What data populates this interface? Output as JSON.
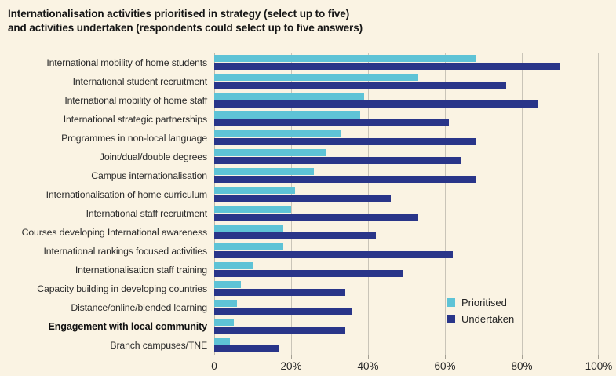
{
  "title": {
    "line1": "Internationalisation activities prioritised in strategy (select up to five)",
    "line2": "and activities undertaken (respondents could select up to five answers)"
  },
  "chart_data": {
    "type": "bar",
    "orientation": "horizontal",
    "title": "Internationalisation activities prioritised in strategy (select up to five) and activities undertaken (respondents could select up to five answers)",
    "categories": [
      "International mobility of home students",
      "International student recruitment",
      "International mobility of home staff",
      "International strategic partnerships",
      "Programmes in non-local language",
      "Joint/dual/double degrees",
      "Campus internationalisation",
      "Internationalisation of home curriculum",
      "International staff recruitment",
      "Courses developing International awareness",
      "International rankings focused activities",
      "Internationalisation staff training",
      "Capacity building in developing countries",
      "Distance/online/blended learning",
      "Engagement with local community",
      "Branch campuses/TNE"
    ],
    "series": [
      {
        "name": "Prioritised",
        "color": "#5ec3d6",
        "values": [
          68,
          53,
          39,
          38,
          33,
          29,
          26,
          21,
          20,
          18,
          18,
          10,
          7,
          6,
          5,
          4
        ]
      },
      {
        "name": "Undertaken",
        "color": "#293589",
        "values": [
          90,
          76,
          84,
          61,
          68,
          64,
          68,
          46,
          53,
          42,
          62,
          49,
          34,
          36,
          34,
          17
        ]
      }
    ],
    "xlabel": "",
    "ylabel": "",
    "xlim": [
      0,
      100
    ],
    "x_ticks": [
      "0",
      "20%",
      "40%",
      "60%",
      "80%",
      "100%"
    ],
    "grid": "vertical-only",
    "legend_position": "inside-lower-right",
    "bold_category": "Engagement with local community"
  },
  "colors": {
    "background": "#faf3e3",
    "gridline": "#c9c4b8",
    "prioritised": "#5ec3d6",
    "undertaken": "#293589",
    "title_text": "#151515",
    "label_text": "#2b2b2b"
  }
}
